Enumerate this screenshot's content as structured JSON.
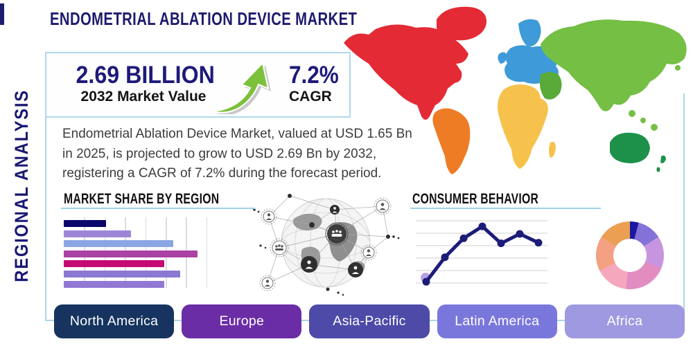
{
  "page": {
    "title": "ENDOMETRIAL ABLATION DEVICE MARKET",
    "side_label": "REGIONAL ANALYSIS"
  },
  "stats": {
    "value": "2.69 BILLION",
    "value_caption": "2032 Market Value",
    "cagr": "7.2%",
    "cagr_caption": "CAGR",
    "arrow_icon": "growth-arrow",
    "arrow_color": "#7cc13b"
  },
  "description": "Endometrial Ablation Device Market, valued at USD 1.65 Bn in 2025, is projected to grow to USD 2.69 Bn by 2032, registering a CAGR of 7.2% during the forecast period.",
  "sections": {
    "market_share_title": "MARKET SHARE BY REGION",
    "consumer_behavior_title": "CONSUMER BEHAVIOR"
  },
  "regions": [
    {
      "label": "North America",
      "color": "#16345f"
    },
    {
      "label": "Europe",
      "color": "#6b2da6"
    },
    {
      "label": "Asia-Pacific",
      "color": "#4d4aa8"
    },
    {
      "label": "Latin America",
      "color": "#7a77dc"
    },
    {
      "label": "Africa",
      "color": "#9e99e0"
    }
  ],
  "map": {
    "colors": {
      "north_america": "#e42a35",
      "greenland": "#e42a35",
      "south_america": "#ee7c25",
      "europe": "#3e9ad8",
      "africa": "#f6c24c",
      "middle_east": "#5aaa3a",
      "asia": "#74bf44",
      "australia": "#1d914a"
    }
  },
  "chart_data": [
    {
      "type": "bar",
      "title": "MARKET SHARE BY REGION",
      "orientation": "horizontal",
      "values": [
        29,
        46,
        75,
        92,
        69,
        80,
        69
      ],
      "unit": "percent-of-axis",
      "colors": [
        "#0b066b",
        "#9d86d6",
        "#8ba6e2",
        "#aa41a5",
        "#c40a73",
        "#8a78d2",
        "#9178d4"
      ],
      "grid": "vertical",
      "gridline_count": 7
    },
    {
      "type": "line",
      "title": "CONSUMER BEHAVIOR",
      "x": [
        1,
        2,
        3,
        4,
        5,
        6,
        7
      ],
      "values": [
        2,
        41,
        71,
        90,
        63,
        78,
        64
      ],
      "unit": "percent-of-axis",
      "line_color": "#1c1c78",
      "marker_color": "#1c1c78",
      "start_marker_color": "#b5a1e0",
      "grid": "horizontal",
      "gridline_count": 6
    },
    {
      "type": "donut",
      "title": "regional split donut",
      "segments": [
        {
          "color": "#1c18a0",
          "degrees": 15
        },
        {
          "color": "#8472d8",
          "degrees": 42
        },
        {
          "color": "#c795e0",
          "degrees": 55
        },
        {
          "color": "#e28cc2",
          "degrees": 75
        },
        {
          "color": "#f5a8bd",
          "degrees": 56
        },
        {
          "color": "#f3a083",
          "degrees": 60
        },
        {
          "color": "#eb9f52",
          "degrees": 57
        }
      ]
    }
  ]
}
